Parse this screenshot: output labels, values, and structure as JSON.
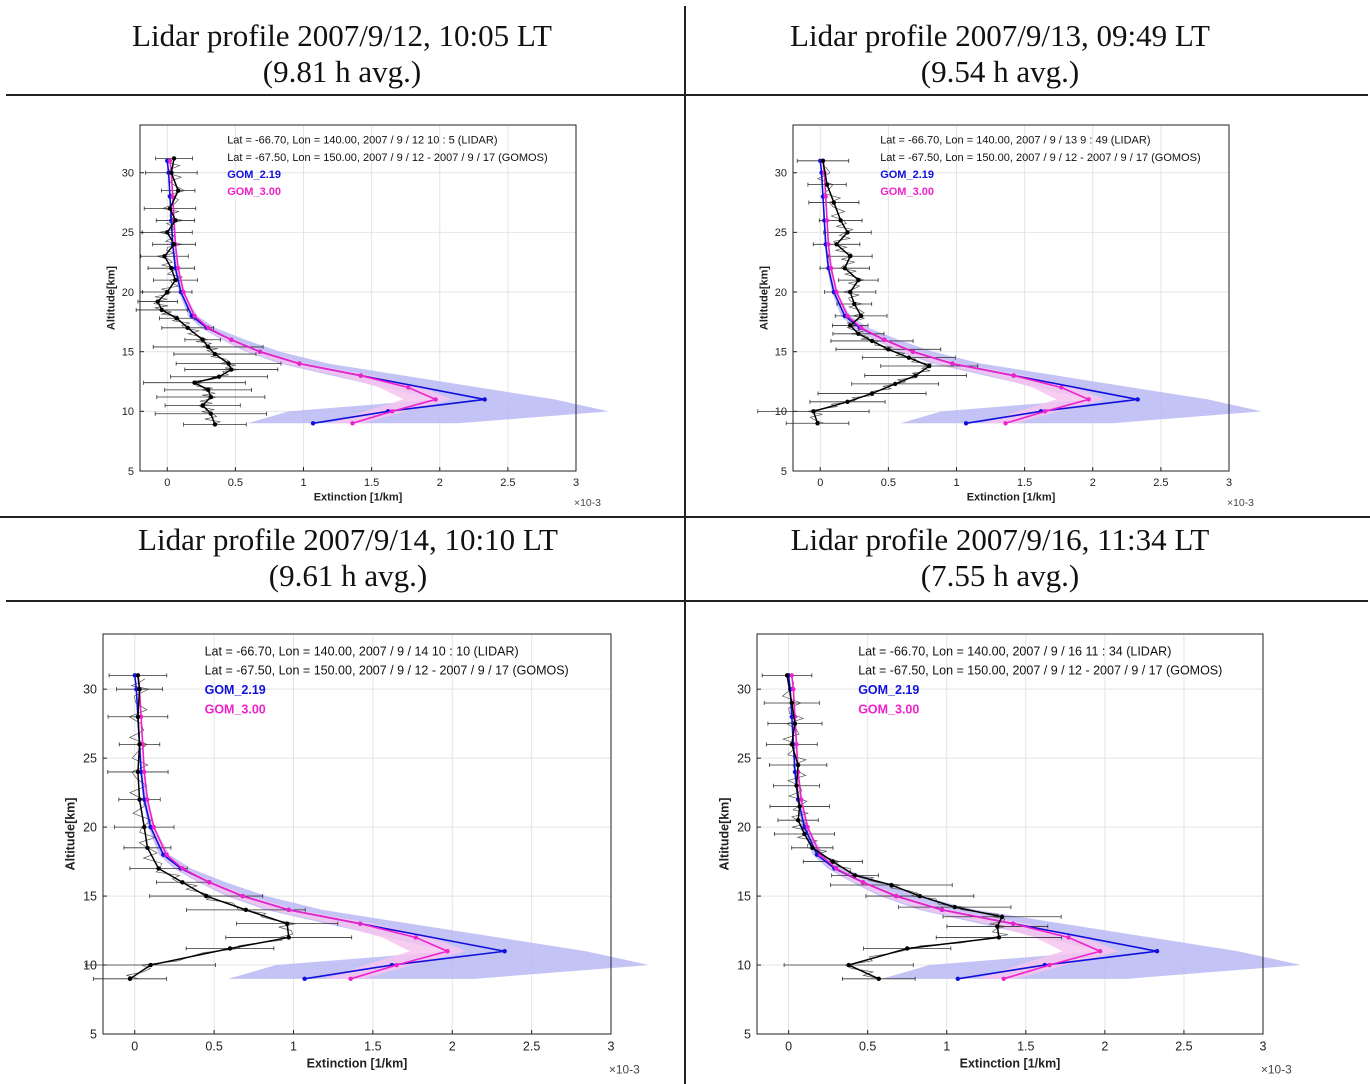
{
  "panels": [
    {
      "title_line1": "Lidar profile 2007/9/12, 10:05 LT",
      "title_line2": "(9.81 h avg.)",
      "legend_line1": "Lat =  -66.70, Lon =  140.00, 2007 / 9 / 12   10 : 5 (LIDAR)",
      "legend_line2": "Lat =  -67.50, Lon =  150.00, 2007 / 9 / 12  -  2007 / 9 / 17 (GOMOS)"
    },
    {
      "title_line1": "Lidar profile 2007/9/13, 09:49 LT",
      "title_line2": "(9.54 h avg.)",
      "legend_line1": "Lat =  -66.70, Lon =  140.00, 2007 / 9 / 13   9 : 49 (LIDAR)",
      "legend_line2": "Lat =  -67.50, Lon =  150.00, 2007 / 9 / 12  -  2007 / 9 / 17 (GOMOS)"
    },
    {
      "title_line1": "Lidar profile 2007/9/14, 10:10 LT",
      "title_line2": "(9.61 h avg.)",
      "legend_line1": "Lat =  -66.70, Lon =  140.00, 2007 / 9 / 14   10 : 10 (LIDAR)",
      "legend_line2": "Lat =  -67.50, Lon =  150.00, 2007 / 9 / 12  -  2007 / 9 / 17 (GOMOS)"
    },
    {
      "title_line1": "Lidar profile 2007/9/16, 11:34 LT",
      "title_line2": "(7.55 h avg.)",
      "legend_line1": "Lat =  -66.70, Lon =  140.00, 2007 / 9 / 16   11 : 34 (LIDAR)",
      "legend_line2": "Lat =  -67.50, Lon =  150.00, 2007 / 9 / 12  -  2007 / 9 / 17 (GOMOS)"
    }
  ],
  "colors": {
    "gom219": "#1010dd",
    "gom300": "#ee22cc",
    "lidar": "#000000",
    "band219": "#b8b8f4",
    "band300": "#f6c4ee"
  },
  "chart_data": [
    {
      "type": "line",
      "xlabel": "Extinction [1/km]",
      "ylabel": "Altitude[km]",
      "x_multiplier": "×10-3",
      "xlim": [
        -0.2,
        3
      ],
      "ylim": [
        5,
        34
      ],
      "xticks": [
        "0",
        "0.5",
        "1",
        "1.5",
        "2",
        "2.5",
        "3"
      ],
      "yticks": [
        "5",
        "10",
        "15",
        "20",
        "25",
        "30"
      ],
      "grid": true,
      "legend_placement": "top-right",
      "series": [
        {
          "name": "GOM_2.19",
          "x": [
            1.07,
            1.62,
            2.33,
            1.42,
            0.97,
            0.68,
            0.47,
            0.29,
            0.18,
            0.1,
            0.06,
            0.04,
            0.03,
            0.02,
            0.01,
            0.0
          ],
          "y": [
            9,
            10,
            11,
            13,
            14,
            15,
            16,
            17,
            18,
            20,
            22,
            24,
            26,
            28,
            30,
            31
          ]
        },
        {
          "name": "GOM_3.00",
          "x": [
            1.36,
            1.65,
            1.97,
            1.77,
            1.42,
            0.97,
            0.68,
            0.47,
            0.3,
            0.2,
            0.12,
            0.08,
            0.06,
            0.05,
            0.04,
            0.03,
            0.02
          ],
          "y": [
            9,
            10,
            11,
            12,
            13,
            14,
            15,
            16,
            17,
            18,
            20,
            22,
            24,
            26,
            28,
            30,
            31
          ]
        },
        {
          "name": "LIDAR",
          "x": [
            0.35,
            0.32,
            0.26,
            0.32,
            0.3,
            0.2,
            0.38,
            0.47,
            0.45,
            0.35,
            0.3,
            0.26,
            0.15,
            0.07,
            -0.04,
            -0.07,
            0.0,
            0.06,
            0.03,
            -0.02,
            0.05,
            0.0,
            0.06,
            0.02,
            0.08,
            0.03,
            0.05
          ],
          "y": [
            8.9,
            9.8,
            10.5,
            11.2,
            11.8,
            12.4,
            12.9,
            13.5,
            14.0,
            14.8,
            15.4,
            16.0,
            17.0,
            17.8,
            18.5,
            19.2,
            20.0,
            21.0,
            22.0,
            23.0,
            24.0,
            25.0,
            26.0,
            27.0,
            28.5,
            30.0,
            31.2
          ]
        }
      ]
    },
    {
      "type": "line",
      "xlabel": "Extinction [1/km]",
      "ylabel": "Altitude[km]",
      "x_multiplier": "×10-3",
      "xlim": [
        -0.2,
        3
      ],
      "ylim": [
        5,
        34
      ],
      "xticks": [
        "0",
        "0.5",
        "1",
        "1.5",
        "2",
        "2.5",
        "3"
      ],
      "yticks": [
        "5",
        "10",
        "15",
        "20",
        "25",
        "30"
      ],
      "grid": true,
      "legend_placement": "top-right",
      "series": [
        {
          "name": "GOM_2.19",
          "x": [
            1.07,
            1.62,
            2.33,
            1.42,
            0.97,
            0.68,
            0.47,
            0.29,
            0.18,
            0.1,
            0.06,
            0.04,
            0.03,
            0.02,
            0.01,
            0.0
          ],
          "y": [
            9,
            10,
            11,
            13,
            14,
            15,
            16,
            17,
            18,
            20,
            22,
            24,
            26,
            28,
            30,
            31
          ]
        },
        {
          "name": "GOM_3.00",
          "x": [
            1.36,
            1.65,
            1.97,
            1.77,
            1.42,
            0.97,
            0.68,
            0.47,
            0.3,
            0.2,
            0.12,
            0.08,
            0.06,
            0.05,
            0.04,
            0.03,
            0.02
          ],
          "y": [
            9,
            10,
            11,
            12,
            13,
            14,
            15,
            16,
            17,
            18,
            20,
            22,
            24,
            26,
            28,
            30,
            31
          ]
        },
        {
          "name": "LIDAR",
          "x": [
            -0.02,
            -0.05,
            0.2,
            0.38,
            0.55,
            0.7,
            0.8,
            0.65,
            0.5,
            0.38,
            0.28,
            0.22,
            0.3,
            0.25,
            0.22,
            0.28,
            0.18,
            0.22,
            0.12,
            0.2,
            0.15,
            0.1,
            0.05,
            0.02
          ],
          "y": [
            9.0,
            10.0,
            10.8,
            11.5,
            12.3,
            13.0,
            13.8,
            14.5,
            15.2,
            15.9,
            16.5,
            17.2,
            18.0,
            19.0,
            20.0,
            21.0,
            22.0,
            23.0,
            24.0,
            25.0,
            26.0,
            27.5,
            29.0,
            31.0
          ]
        }
      ]
    },
    {
      "type": "line",
      "xlabel": "Extinction [1/km]",
      "ylabel": "Altitude[km]",
      "x_multiplier": "×10-3",
      "xlim": [
        -0.2,
        3
      ],
      "ylim": [
        5,
        34
      ],
      "xticks": [
        "0",
        "0.5",
        "1",
        "1.5",
        "2",
        "2.5",
        "3"
      ],
      "yticks": [
        "5",
        "10",
        "15",
        "20",
        "25",
        "30"
      ],
      "grid": true,
      "legend_placement": "top-right",
      "series": [
        {
          "name": "GOM_2.19",
          "x": [
            1.07,
            1.62,
            2.33,
            1.42,
            0.97,
            0.68,
            0.47,
            0.29,
            0.18,
            0.1,
            0.06,
            0.04,
            0.03,
            0.02,
            0.01,
            0.0
          ],
          "y": [
            9,
            10,
            11,
            13,
            14,
            15,
            16,
            17,
            18,
            20,
            22,
            24,
            26,
            28,
            30,
            31
          ]
        },
        {
          "name": "GOM_3.00",
          "x": [
            1.36,
            1.65,
            1.97,
            1.77,
            1.42,
            0.97,
            0.68,
            0.47,
            0.3,
            0.2,
            0.12,
            0.08,
            0.06,
            0.05,
            0.04,
            0.03,
            0.02
          ],
          "y": [
            9,
            10,
            11,
            12,
            13,
            14,
            15,
            16,
            17,
            18,
            20,
            22,
            24,
            26,
            28,
            30,
            31
          ]
        },
        {
          "name": "LIDAR",
          "x": [
            -0.03,
            0.1,
            0.6,
            0.97,
            0.96,
            0.7,
            0.45,
            0.3,
            0.15,
            0.08,
            0.06,
            0.03,
            0.02,
            0.03,
            0.02,
            0.03,
            0.02
          ],
          "y": [
            9.0,
            10.0,
            11.2,
            12.0,
            13.0,
            14.0,
            15.0,
            16.0,
            17.0,
            18.5,
            20.0,
            22.0,
            24.0,
            26.0,
            28.0,
            30.0,
            31.0
          ]
        }
      ]
    },
    {
      "type": "line",
      "xlabel": "Extinction [1/km]",
      "ylabel": "Altitude[km]",
      "x_multiplier": "×10-3",
      "xlim": [
        -0.2,
        3
      ],
      "ylim": [
        5,
        34
      ],
      "xticks": [
        "0",
        "0.5",
        "1",
        "1.5",
        "2",
        "2.5",
        "3"
      ],
      "yticks": [
        "5",
        "10",
        "15",
        "20",
        "25",
        "30"
      ],
      "grid": true,
      "legend_placement": "top-right",
      "series": [
        {
          "name": "GOM_2.19",
          "x": [
            1.07,
            1.62,
            2.33,
            1.42,
            0.97,
            0.68,
            0.47,
            0.29,
            0.18,
            0.1,
            0.06,
            0.04,
            0.03,
            0.02,
            0.01,
            0.0
          ],
          "y": [
            9,
            10,
            11,
            13,
            14,
            15,
            16,
            17,
            18,
            20,
            22,
            24,
            26,
            28,
            30,
            31
          ]
        },
        {
          "name": "GOM_3.00",
          "x": [
            1.36,
            1.65,
            1.97,
            1.77,
            1.42,
            0.97,
            0.68,
            0.47,
            0.3,
            0.2,
            0.12,
            0.08,
            0.06,
            0.05,
            0.04,
            0.03,
            0.02
          ],
          "y": [
            9,
            10,
            11,
            12,
            13,
            14,
            15,
            16,
            17,
            18,
            20,
            22,
            24,
            26,
            28,
            30,
            31
          ]
        },
        {
          "name": "LIDAR",
          "x": [
            0.57,
            0.38,
            0.75,
            1.33,
            1.32,
            1.35,
            1.05,
            0.83,
            0.65,
            0.42,
            0.28,
            0.15,
            0.1,
            0.06,
            0.07,
            0.05,
            0.06,
            0.02,
            0.04,
            0.02,
            -0.01
          ],
          "y": [
            9.0,
            10.0,
            11.2,
            12.0,
            12.8,
            13.5,
            14.2,
            15.0,
            15.8,
            16.5,
            17.5,
            18.5,
            19.5,
            20.5,
            21.5,
            23.0,
            24.5,
            26.0,
            27.5,
            29.0,
            31.0
          ]
        }
      ]
    }
  ]
}
